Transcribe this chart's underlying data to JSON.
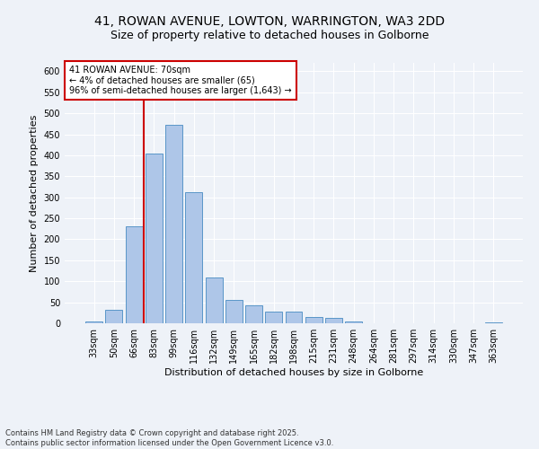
{
  "title": "41, ROWAN AVENUE, LOWTON, WARRINGTON, WA3 2DD",
  "subtitle": "Size of property relative to detached houses in Golborne",
  "xlabel": "Distribution of detached houses by size in Golborne",
  "ylabel": "Number of detached properties",
  "footer": "Contains HM Land Registry data © Crown copyright and database right 2025.\nContains public sector information licensed under the Open Government Licence v3.0.",
  "categories": [
    "33sqm",
    "50sqm",
    "66sqm",
    "83sqm",
    "99sqm",
    "116sqm",
    "132sqm",
    "149sqm",
    "165sqm",
    "182sqm",
    "198sqm",
    "215sqm",
    "231sqm",
    "248sqm",
    "264sqm",
    "281sqm",
    "297sqm",
    "314sqm",
    "330sqm",
    "347sqm",
    "363sqm"
  ],
  "values": [
    5,
    32,
    230,
    405,
    473,
    312,
    110,
    55,
    42,
    28,
    28,
    15,
    12,
    4,
    0,
    0,
    0,
    0,
    0,
    0,
    3
  ],
  "bar_color": "#aec6e8",
  "bar_edge_color": "#5a96c8",
  "property_line_color": "#cc0000",
  "annotation_text": "41 ROWAN AVENUE: 70sqm\n← 4% of detached houses are smaller (65)\n96% of semi-detached houses are larger (1,643) →",
  "annotation_box_color": "#cc0000",
  "ylim": [
    0,
    620
  ],
  "yticks": [
    0,
    50,
    100,
    150,
    200,
    250,
    300,
    350,
    400,
    450,
    500,
    550,
    600
  ],
  "background_color": "#eef2f8",
  "grid_color": "#ffffff",
  "title_fontsize": 10,
  "subtitle_fontsize": 9,
  "axis_fontsize": 8,
  "tick_fontsize": 7,
  "footer_fontsize": 6,
  "ann_fontsize": 7
}
